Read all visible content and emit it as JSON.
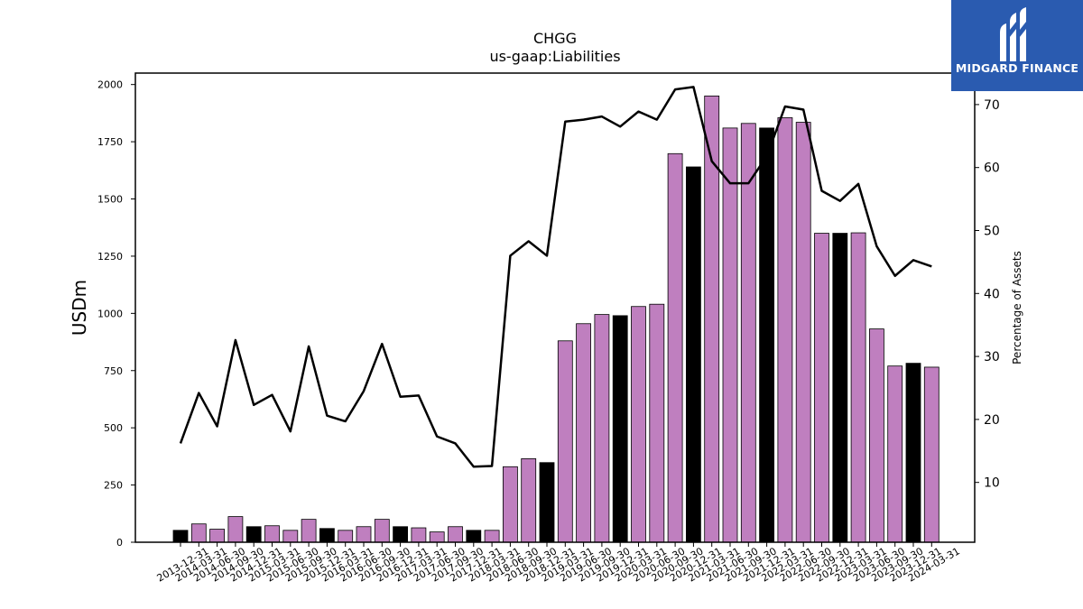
{
  "chart_data": {
    "type": "bar",
    "title": "CHGG",
    "subtitle": "us-gaap:Liabilities",
    "ylabel": "USDm",
    "y2label": "Percentage of Assets",
    "ylim": [
      0,
      2050
    ],
    "y2lim": [
      0.5,
      75
    ],
    "yticks": [
      0,
      250,
      500,
      750,
      1000,
      1250,
      1500,
      1750,
      2000
    ],
    "y2ticks": [
      10,
      20,
      30,
      40,
      50,
      60,
      70
    ],
    "categories": [
      "2013-12-31",
      "2014-03-31",
      "2014-06-30",
      "2014-09-30",
      "2014-12-31",
      "2015-03-31",
      "2015-06-30",
      "2015-09-30",
      "2015-12-31",
      "2016-03-31",
      "2016-06-30",
      "2016-09-30",
      "2016-12-31",
      "2017-03-31",
      "2017-06-30",
      "2017-09-30",
      "2017-12-31",
      "2018-03-31",
      "2018-06-30",
      "2018-09-30",
      "2018-12-31",
      "2019-03-31",
      "2019-06-30",
      "2019-09-30",
      "2019-12-31",
      "2020-03-31",
      "2020-06-30",
      "2020-09-30",
      "2020-12-31",
      "2021-03-31",
      "2021-06-30",
      "2021-09-30",
      "2021-12-31",
      "2022-03-31",
      "2022-06-30",
      "2022-09-30",
      "2022-12-31",
      "2023-03-31",
      "2023-06-30",
      "2023-09-30",
      "2023-12-31",
      "2024-03-31"
    ],
    "series": [
      {
        "kind": "bar",
        "values": [
          52,
          80,
          57,
          112,
          68,
          72,
          52,
          100,
          60,
          52,
          68,
          100,
          68,
          63,
          45,
          68,
          52,
          52,
          330,
          365,
          348,
          880,
          955,
          995,
          990,
          1030,
          1040,
          1698,
          1640,
          1950,
          1810,
          1830,
          1810,
          1855,
          1835,
          1350,
          1350,
          1352,
          932,
          770,
          782,
          765
        ]
      },
      {
        "kind": "line",
        "axis": "right",
        "values": [
          16.2,
          24.2,
          18.9,
          32.6,
          22.3,
          23.9,
          18.1,
          31.6,
          20.6,
          19.7,
          24.5,
          32.0,
          23.6,
          23.8,
          17.3,
          16.2,
          12.5,
          12.6,
          46.0,
          48.3,
          46.0,
          67.3,
          67.6,
          68.1,
          66.5,
          68.9,
          67.6,
          72.4,
          72.8,
          61.0,
          57.5,
          57.5,
          61.8,
          69.7,
          69.2,
          56.3,
          54.7,
          57.4,
          47.5,
          42.8,
          45.3,
          44.3
        ]
      }
    ],
    "bar_colors": [
      "#000000",
      "#bf7fbf",
      "#bf7fbf",
      "#bf7fbf",
      "#000000",
      "#bf7fbf",
      "#bf7fbf",
      "#bf7fbf",
      "#000000",
      "#bf7fbf",
      "#bf7fbf",
      "#bf7fbf",
      "#000000",
      "#bf7fbf",
      "#bf7fbf",
      "#bf7fbf",
      "#000000",
      "#bf7fbf",
      "#bf7fbf",
      "#bf7fbf",
      "#000000",
      "#bf7fbf",
      "#bf7fbf",
      "#bf7fbf",
      "#000000",
      "#bf7fbf",
      "#bf7fbf",
      "#bf7fbf",
      "#000000",
      "#bf7fbf",
      "#bf7fbf",
      "#bf7fbf",
      "#000000",
      "#bf7fbf",
      "#bf7fbf",
      "#bf7fbf",
      "#000000",
      "#bf7fbf",
      "#bf7fbf",
      "#bf7fbf",
      "#000000",
      "#bf7fbf"
    ],
    "line_color": "#000000",
    "grid": false,
    "legend": "none"
  },
  "logo": {
    "text": "MIDGARD FINANCE",
    "bg_color": "#2a5bb0",
    "icon": "midgard-logo-icon"
  }
}
